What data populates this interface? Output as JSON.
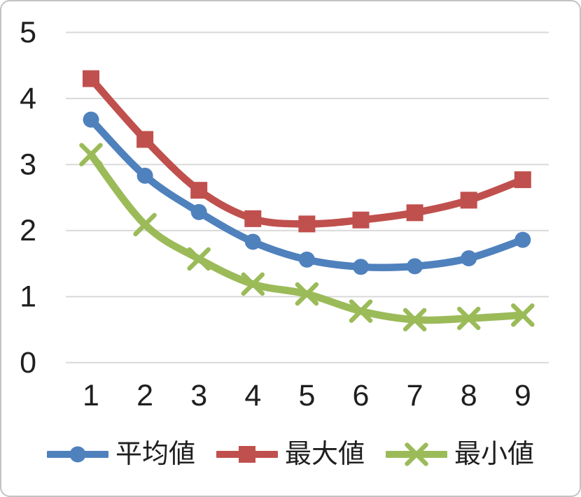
{
  "chart_data": {
    "type": "line",
    "title": "",
    "xlabel": "",
    "ylabel": "",
    "categories": [
      "1",
      "2",
      "3",
      "4",
      "5",
      "6",
      "7",
      "8",
      "9"
    ],
    "y_ticks": [
      "0",
      "1",
      "2",
      "3",
      "4",
      "5"
    ],
    "ylim": [
      0,
      5
    ],
    "grid": true,
    "smooth_lines": true,
    "legend_position": "bottom",
    "series": [
      {
        "name": "平均値",
        "marker": "circle",
        "color": "#4F81BD",
        "values": [
          3.68,
          2.83,
          2.28,
          1.83,
          1.56,
          1.45,
          1.46,
          1.58,
          1.86
        ]
      },
      {
        "name": "最大値",
        "marker": "square",
        "color": "#C0504D",
        "values": [
          4.3,
          3.38,
          2.61,
          2.18,
          2.1,
          2.16,
          2.27,
          2.46,
          2.77
        ]
      },
      {
        "name": "最小値",
        "marker": "x",
        "color": "#9BBB59",
        "values": [
          3.15,
          2.09,
          1.57,
          1.19,
          1.04,
          0.78,
          0.65,
          0.67,
          0.72
        ]
      }
    ]
  },
  "styles": {
    "gridline_color": "#D9D9D9",
    "axis_text_color": "#1f1f1f",
    "background_color": "#FFFFFF",
    "frame_border_color": "#C3C3C3"
  },
  "icons": {
    "legend_marker_circle": "circle-marker-icon",
    "legend_marker_square": "square-marker-icon",
    "legend_marker_x": "x-marker-icon"
  }
}
